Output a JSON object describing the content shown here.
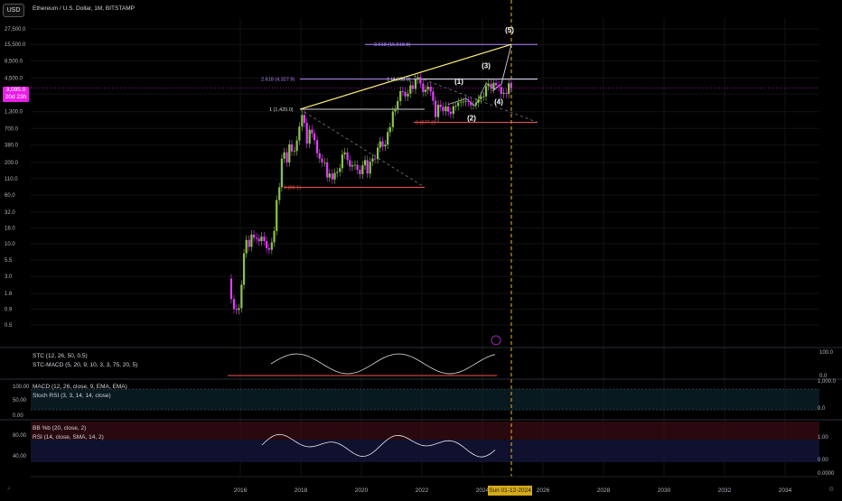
{
  "header": {
    "currency_button": "USD",
    "title": "Ethereum / U.S. Dollar, 1M, BITSTAMP",
    "current_price": "3,095.0",
    "countdown": "20d 23h"
  },
  "colors": {
    "background": "#000000",
    "candle_up": "#8bc34a",
    "candle_down": "#e040fb",
    "trendline": "#fff176",
    "fib_purple": "#b388ff",
    "support_red": "#ef5350",
    "date_marker": "#ffb300"
  },
  "chart_data": {
    "type": "candlestick",
    "y_scale": "log",
    "price_axis_ticks": [
      "27,500.0",
      "15,500.0",
      "8,500.0",
      "4,500.0",
      "2,500.0",
      "1,300.0",
      "700.0",
      "380.0",
      "200.0",
      "110.0",
      "60.0",
      "32.0",
      "18.0",
      "10.0",
      "5.5",
      "3.0",
      "1.6",
      "0.9",
      "0.5"
    ],
    "time_axis_ticks": [
      "2016",
      "2018",
      "2020",
      "2022",
      "2024",
      "2026",
      "2028",
      "2030",
      "2032",
      "2034"
    ],
    "date_marker": "Sun 01-12-2024",
    "fib_labels": [
      {
        "text": "3.618 (15,518.8)",
        "price": 15518.8
      },
      {
        "text": "2.618 (4,327.9)",
        "price": 4327.9
      },
      {
        "text": "1 (4,868.0)",
        "price": 4868
      },
      {
        "text": "1 (1,420.0)",
        "price": 1420
      },
      {
        "text": "0 (877.2)",
        "price": 877.2
      },
      {
        "text": "0 (80.1)",
        "price": 80.1
      }
    ],
    "wave_labels": [
      "(1)",
      "(2)",
      "(3)",
      "(4)",
      "(5)"
    ],
    "monthly_closes": [
      {
        "t": 2015.7,
        "o": 2.77,
        "c": 1.3
      },
      {
        "t": 2015.79,
        "o": 1.3,
        "c": 0.9
      },
      {
        "t": 2015.87,
        "o": 0.9,
        "c": 0.87
      },
      {
        "t": 2015.95,
        "o": 0.87,
        "c": 0.93
      },
      {
        "t": 2016.04,
        "o": 0.93,
        "c": 2.2
      },
      {
        "t": 2016.12,
        "o": 2.2,
        "c": 7.0
      },
      {
        "t": 2016.2,
        "o": 7.0,
        "c": 11.5
      },
      {
        "t": 2016.29,
        "o": 11.5,
        "c": 8.9
      },
      {
        "t": 2016.37,
        "o": 8.9,
        "c": 14.0
      },
      {
        "t": 2016.45,
        "o": 14.0,
        "c": 12.5
      },
      {
        "t": 2016.54,
        "o": 12.5,
        "c": 12.0
      },
      {
        "t": 2016.62,
        "o": 12.0,
        "c": 11.0
      },
      {
        "t": 2016.7,
        "o": 11.0,
        "c": 13.0
      },
      {
        "t": 2016.79,
        "o": 13.0,
        "c": 11.0
      },
      {
        "t": 2016.87,
        "o": 11.0,
        "c": 8.5
      },
      {
        "t": 2016.95,
        "o": 8.5,
        "c": 8.0
      },
      {
        "t": 2017.04,
        "o": 8.0,
        "c": 10.5
      },
      {
        "t": 2017.12,
        "o": 10.5,
        "c": 16.0
      },
      {
        "t": 2017.2,
        "o": 16.0,
        "c": 50.0
      },
      {
        "t": 2017.29,
        "o": 50.0,
        "c": 80.0
      },
      {
        "t": 2017.37,
        "o": 80.0,
        "c": 230
      },
      {
        "t": 2017.45,
        "o": 230,
        "c": 290
      },
      {
        "t": 2017.54,
        "o": 290,
        "c": 200
      },
      {
        "t": 2017.62,
        "o": 200,
        "c": 390
      },
      {
        "t": 2017.7,
        "o": 390,
        "c": 300
      },
      {
        "t": 2017.79,
        "o": 300,
        "c": 305
      },
      {
        "t": 2017.87,
        "o": 305,
        "c": 450
      },
      {
        "t": 2017.95,
        "o": 450,
        "c": 750
      },
      {
        "t": 2018.04,
        "o": 750,
        "c": 1150
      },
      {
        "t": 2018.12,
        "o": 1150,
        "c": 860
      },
      {
        "t": 2018.2,
        "o": 860,
        "c": 400
      },
      {
        "t": 2018.29,
        "o": 400,
        "c": 670
      },
      {
        "t": 2018.37,
        "o": 670,
        "c": 580
      },
      {
        "t": 2018.45,
        "o": 580,
        "c": 455
      },
      {
        "t": 2018.54,
        "o": 455,
        "c": 280
      },
      {
        "t": 2018.62,
        "o": 280,
        "c": 230
      },
      {
        "t": 2018.7,
        "o": 230,
        "c": 200
      },
      {
        "t": 2018.79,
        "o": 200,
        "c": 200
      },
      {
        "t": 2018.87,
        "o": 200,
        "c": 115
      },
      {
        "t": 2018.95,
        "o": 115,
        "c": 133
      },
      {
        "t": 2019.04,
        "o": 133,
        "c": 107
      },
      {
        "t": 2019.12,
        "o": 107,
        "c": 136
      },
      {
        "t": 2019.2,
        "o": 136,
        "c": 141
      },
      {
        "t": 2019.29,
        "o": 141,
        "c": 162
      },
      {
        "t": 2019.37,
        "o": 162,
        "c": 268
      },
      {
        "t": 2019.45,
        "o": 268,
        "c": 290
      },
      {
        "t": 2019.54,
        "o": 290,
        "c": 218
      },
      {
        "t": 2019.62,
        "o": 218,
        "c": 172
      },
      {
        "t": 2019.7,
        "o": 172,
        "c": 180
      },
      {
        "t": 2019.79,
        "o": 180,
        "c": 183
      },
      {
        "t": 2019.87,
        "o": 183,
        "c": 152
      },
      {
        "t": 2019.95,
        "o": 152,
        "c": 130
      },
      {
        "t": 2020.04,
        "o": 130,
        "c": 180
      },
      {
        "t": 2020.12,
        "o": 180,
        "c": 218
      },
      {
        "t": 2020.2,
        "o": 218,
        "c": 133
      },
      {
        "t": 2020.29,
        "o": 133,
        "c": 206
      },
      {
        "t": 2020.37,
        "o": 206,
        "c": 231
      },
      {
        "t": 2020.45,
        "o": 231,
        "c": 226
      },
      {
        "t": 2020.54,
        "o": 226,
        "c": 345
      },
      {
        "t": 2020.62,
        "o": 345,
        "c": 435
      },
      {
        "t": 2020.7,
        "o": 435,
        "c": 360
      },
      {
        "t": 2020.79,
        "o": 360,
        "c": 386
      },
      {
        "t": 2020.87,
        "o": 386,
        "c": 612
      },
      {
        "t": 2020.95,
        "o": 612,
        "c": 737
      },
      {
        "t": 2021.04,
        "o": 737,
        "c": 1312
      },
      {
        "t": 2021.12,
        "o": 1312,
        "c": 1419
      },
      {
        "t": 2021.2,
        "o": 1419,
        "c": 1918
      },
      {
        "t": 2021.29,
        "o": 1918,
        "c": 2773
      },
      {
        "t": 2021.37,
        "o": 2773,
        "c": 2707
      },
      {
        "t": 2021.45,
        "o": 2707,
        "c": 2275
      },
      {
        "t": 2021.54,
        "o": 2275,
        "c": 2536
      },
      {
        "t": 2021.62,
        "o": 2536,
        "c": 3433
      },
      {
        "t": 2021.7,
        "o": 3433,
        "c": 3000
      },
      {
        "t": 2021.79,
        "o": 3000,
        "c": 4288
      },
      {
        "t": 2021.87,
        "o": 4288,
        "c": 4630
      },
      {
        "t": 2021.95,
        "o": 4630,
        "c": 3680
      },
      {
        "t": 2022.04,
        "o": 3680,
        "c": 2688
      },
      {
        "t": 2022.12,
        "o": 2688,
        "c": 2920
      },
      {
        "t": 2022.2,
        "o": 2920,
        "c": 3282
      },
      {
        "t": 2022.29,
        "o": 3282,
        "c": 2730
      },
      {
        "t": 2022.37,
        "o": 2730,
        "c": 1942
      },
      {
        "t": 2022.45,
        "o": 1942,
        "c": 1068
      },
      {
        "t": 2022.54,
        "o": 1068,
        "c": 1678
      },
      {
        "t": 2022.62,
        "o": 1678,
        "c": 1553
      },
      {
        "t": 2022.7,
        "o": 1553,
        "c": 1328
      },
      {
        "t": 2022.79,
        "o": 1328,
        "c": 1573
      },
      {
        "t": 2022.87,
        "o": 1573,
        "c": 1295
      },
      {
        "t": 2022.95,
        "o": 1295,
        "c": 1196
      },
      {
        "t": 2023.04,
        "o": 1196,
        "c": 1585
      },
      {
        "t": 2023.12,
        "o": 1585,
        "c": 1605
      },
      {
        "t": 2023.2,
        "o": 1605,
        "c": 1822
      },
      {
        "t": 2023.29,
        "o": 1822,
        "c": 1870
      },
      {
        "t": 2023.37,
        "o": 1870,
        "c": 1875
      },
      {
        "t": 2023.45,
        "o": 1875,
        "c": 1934
      },
      {
        "t": 2023.54,
        "o": 1934,
        "c": 1857
      },
      {
        "t": 2023.62,
        "o": 1857,
        "c": 1646
      },
      {
        "t": 2023.7,
        "o": 1646,
        "c": 1671
      },
      {
        "t": 2023.79,
        "o": 1671,
        "c": 1813
      },
      {
        "t": 2023.87,
        "o": 1813,
        "c": 2050
      },
      {
        "t": 2023.95,
        "o": 2050,
        "c": 2281
      },
      {
        "t": 2024.04,
        "o": 2281,
        "c": 2283
      },
      {
        "t": 2024.12,
        "o": 2283,
        "c": 3340
      },
      {
        "t": 2024.2,
        "o": 3340,
        "c": 3646
      },
      {
        "t": 2024.29,
        "o": 3646,
        "c": 3015
      },
      {
        "t": 2024.37,
        "o": 3015,
        "c": 3760
      },
      {
        "t": 2024.45,
        "o": 3760,
        "c": 3430
      },
      {
        "t": 2024.54,
        "o": 3430,
        "c": 3232
      },
      {
        "t": 2024.62,
        "o": 3232,
        "c": 2513
      },
      {
        "t": 2024.7,
        "o": 2513,
        "c": 2602
      },
      {
        "t": 2024.79,
        "o": 2602,
        "c": 2515
      },
      {
        "t": 2024.87,
        "o": 2515,
        "c": 3700
      },
      {
        "t": 2024.95,
        "o": 3700,
        "c": 3095
      }
    ]
  },
  "indicators": {
    "stc": {
      "label1": "STC (12, 26, 50, 0.5)",
      "label2": "STC-MACD (5, 20, 9, 10, 3, 3, 75, 20, 5)",
      "axis": [
        "100.0",
        "0.0"
      ]
    },
    "macd": {
      "label1": "MACD (12, 26, close, 9, EMA, EMA)",
      "label2": "Stoch RSI (3, 3, 14, 14, close)",
      "axis_left": [
        "100.00",
        "50.00",
        "0.00"
      ],
      "axis_right": [
        "1,000.0",
        "0.0"
      ]
    },
    "rsi": {
      "label1": "BB %b (20, close, 2)",
      "label2": "RSI (14, close, SMA, 14, 2)",
      "axis_left": [
        "80.00",
        "40.00"
      ],
      "axis_right": [
        "1.00",
        "0.00",
        "0.0000"
      ]
    }
  }
}
